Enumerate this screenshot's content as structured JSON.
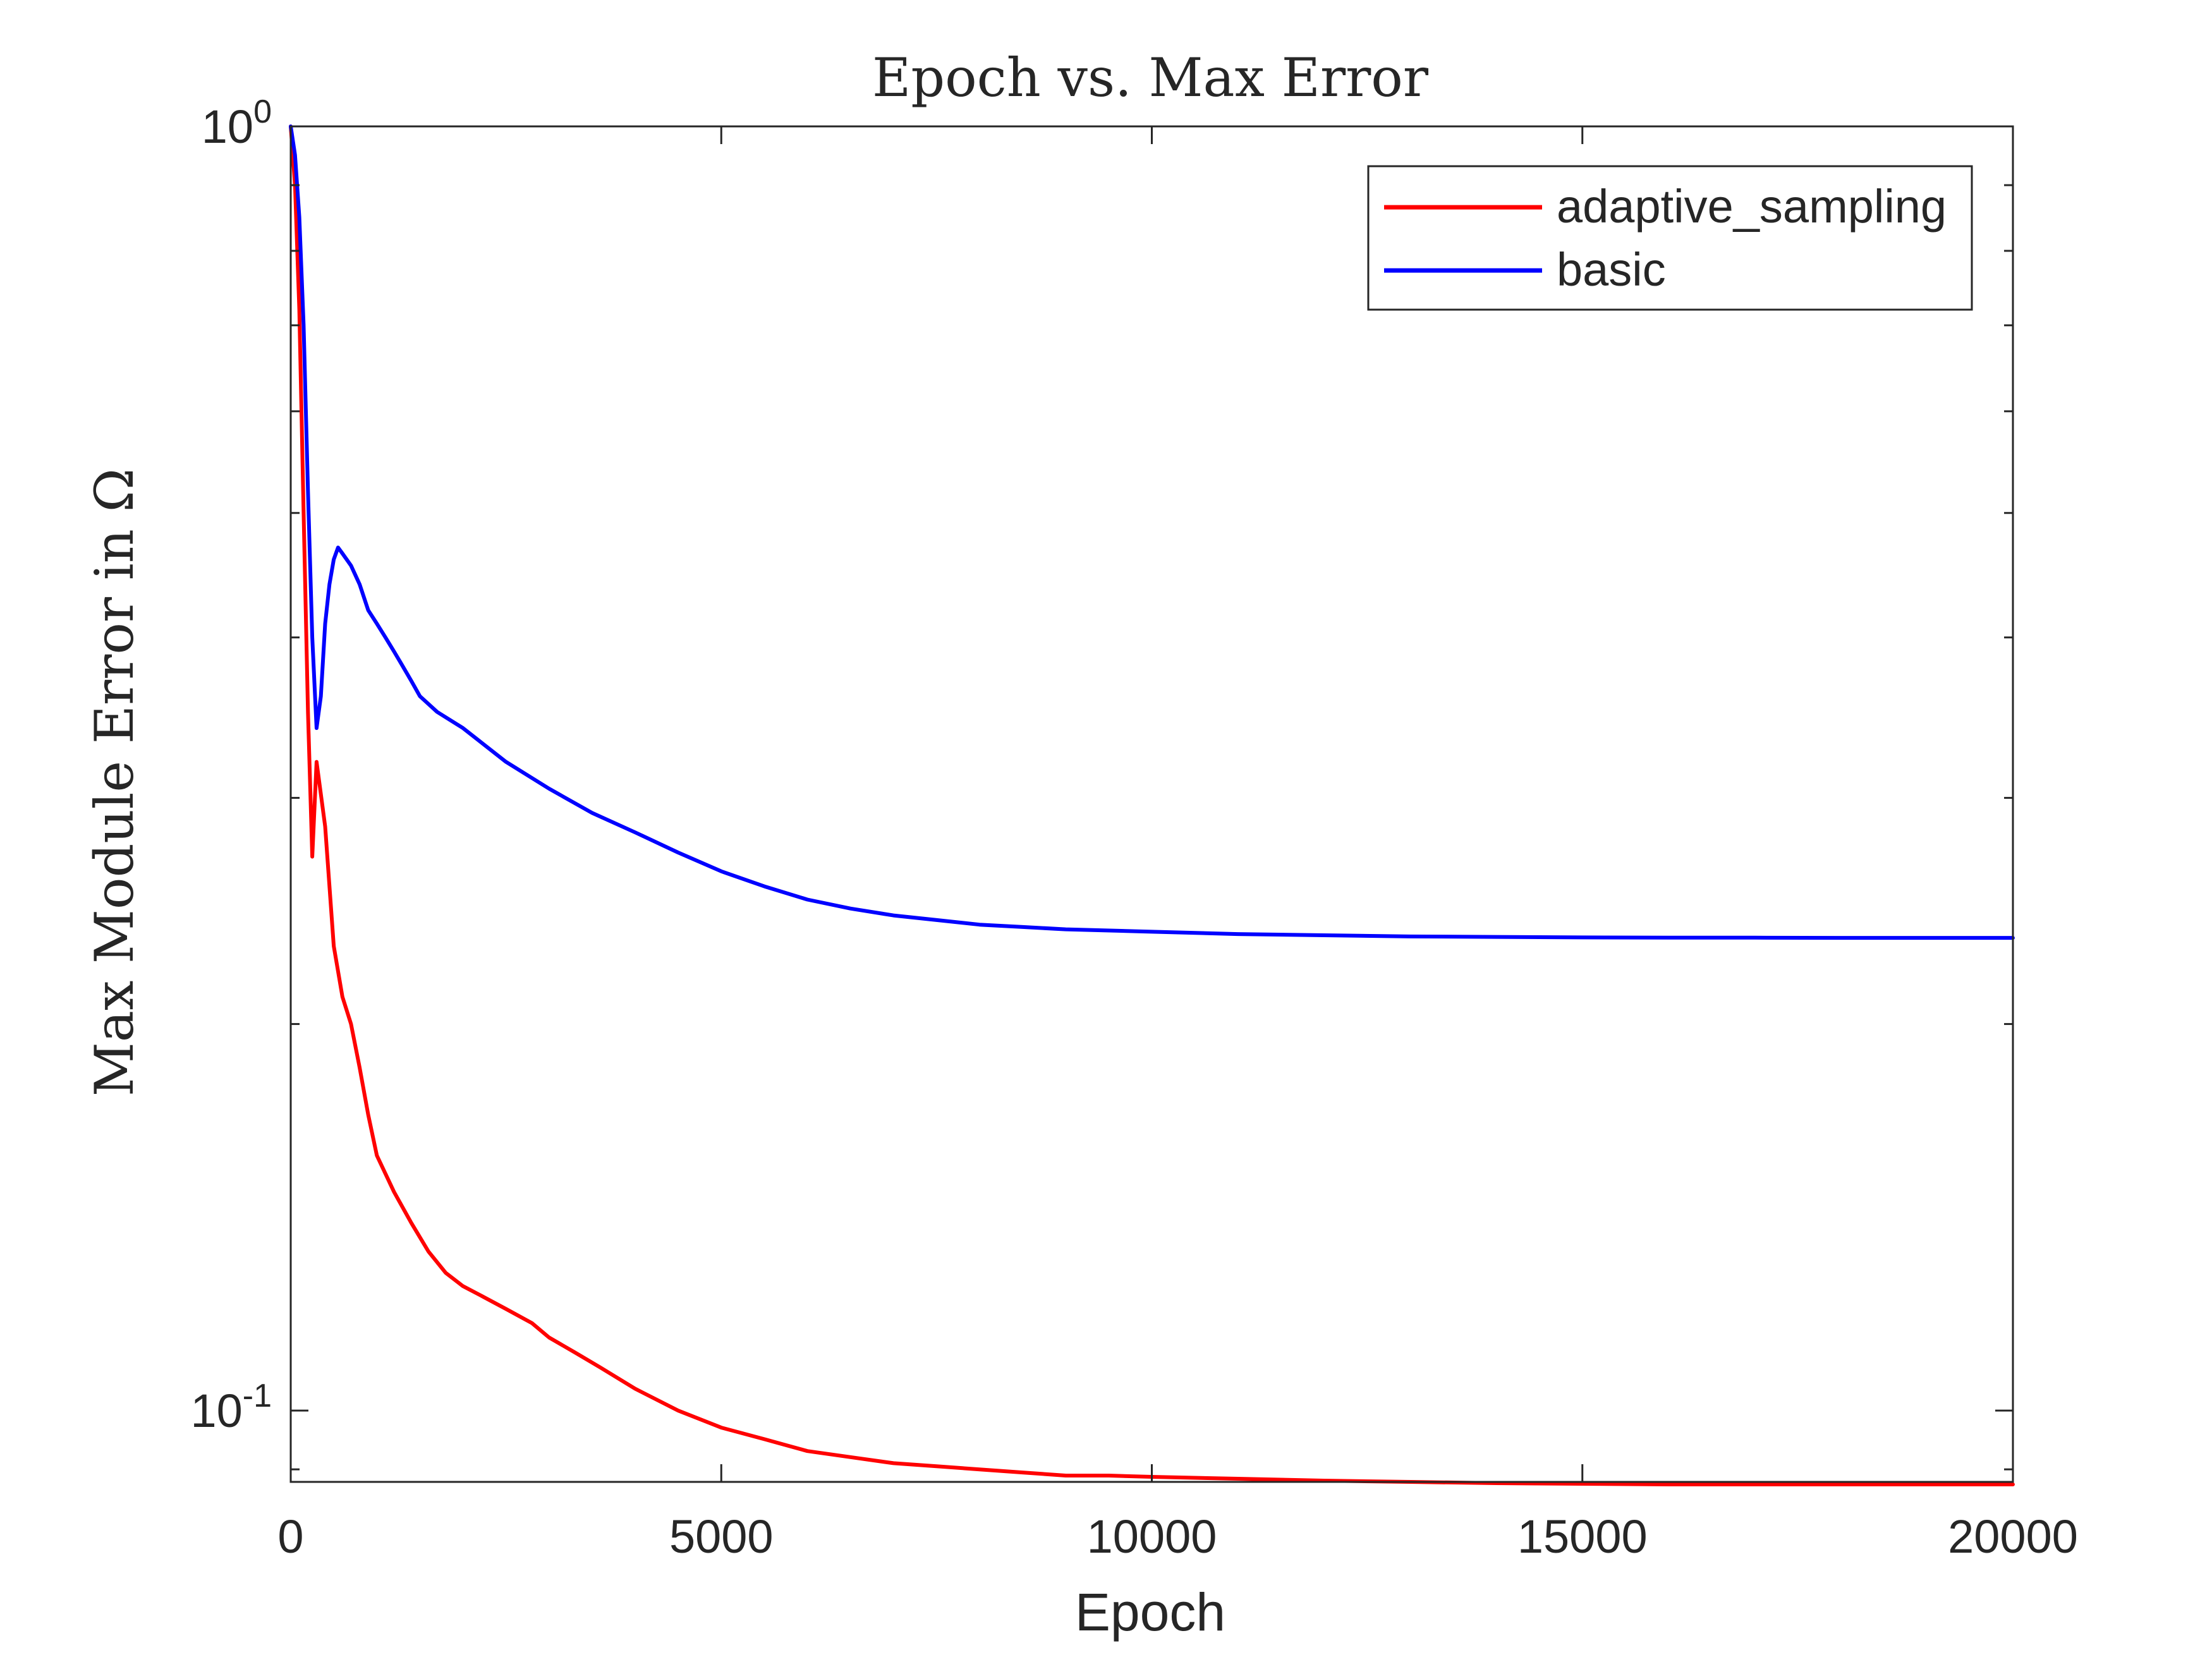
{
  "chart_data": {
    "type": "line",
    "title": "Epoch vs. Max Error",
    "xlabel": "Epoch",
    "ylabel": "Max Module Error in Ω",
    "xlim": [
      0,
      20000
    ],
    "ylim": [
      0.088,
      1.0
    ],
    "yscale": "log",
    "grid": false,
    "legend_position": "top-right",
    "x_ticks": [
      0,
      5000,
      10000,
      15000,
      20000
    ],
    "x_tick_labels": [
      "0",
      "5000",
      "10000",
      "15000",
      "20000"
    ],
    "y_ticks": [
      0.1,
      1.0
    ],
    "y_tick_labels": [
      {
        "base": "10",
        "exp": "-1"
      },
      {
        "base": "10",
        "exp": "0"
      }
    ],
    "series": [
      {
        "name": "adaptive_sampling",
        "color": "#ff0000",
        "x": [
          0,
          50,
          100,
          150,
          200,
          250,
          300,
          400,
          500,
          600,
          700,
          800,
          900,
          1000,
          1200,
          1400,
          1600,
          1800,
          2000,
          2200,
          2500,
          2800,
          3000,
          3300,
          3600,
          4000,
          4500,
          5000,
          5500,
          6000,
          6500,
          7000,
          7500,
          8000,
          8500,
          9000,
          9500,
          10000,
          11000,
          12000,
          13000,
          14000,
          15000,
          16000,
          17000,
          18000,
          19000,
          20000
        ],
        "y": [
          1.0,
          0.9,
          0.72,
          0.5,
          0.35,
          0.27,
          0.32,
          0.285,
          0.23,
          0.21,
          0.2,
          0.185,
          0.17,
          0.158,
          0.148,
          0.14,
          0.133,
          0.128,
          0.125,
          0.123,
          0.12,
          0.117,
          0.114,
          0.111,
          0.108,
          0.104,
          0.1,
          0.097,
          0.095,
          0.093,
          0.092,
          0.091,
          0.0905,
          0.09,
          0.0895,
          0.089,
          0.089,
          0.0888,
          0.0885,
          0.0882,
          0.088,
          0.0878,
          0.0877,
          0.0876,
          0.0876,
          0.0876,
          0.0876,
          0.0876
        ]
      },
      {
        "name": "basic",
        "color": "#0000ff",
        "x": [
          0,
          50,
          100,
          150,
          200,
          250,
          300,
          350,
          400,
          450,
          500,
          550,
          600,
          700,
          800,
          900,
          1000,
          1100,
          1200,
          1300,
          1400,
          1500,
          1700,
          2000,
          2500,
          3000,
          3500,
          4000,
          4500,
          5000,
          5500,
          6000,
          6500,
          7000,
          7500,
          8000,
          8500,
          9000,
          10000,
          11000,
          12000,
          13000,
          14000,
          15000,
          16000,
          17000,
          18000,
          19000,
          20000
        ],
        "y": [
          1.0,
          0.95,
          0.85,
          0.7,
          0.52,
          0.4,
          0.34,
          0.36,
          0.41,
          0.44,
          0.46,
          0.47,
          0.465,
          0.455,
          0.44,
          0.42,
          0.41,
          0.4,
          0.39,
          0.38,
          0.37,
          0.36,
          0.35,
          0.34,
          0.32,
          0.305,
          0.292,
          0.282,
          0.272,
          0.263,
          0.256,
          0.25,
          0.246,
          0.243,
          0.241,
          0.239,
          0.238,
          0.237,
          0.236,
          0.235,
          0.2345,
          0.234,
          0.2338,
          0.2336,
          0.2335,
          0.2335,
          0.2334,
          0.2334,
          0.2334
        ]
      }
    ]
  }
}
